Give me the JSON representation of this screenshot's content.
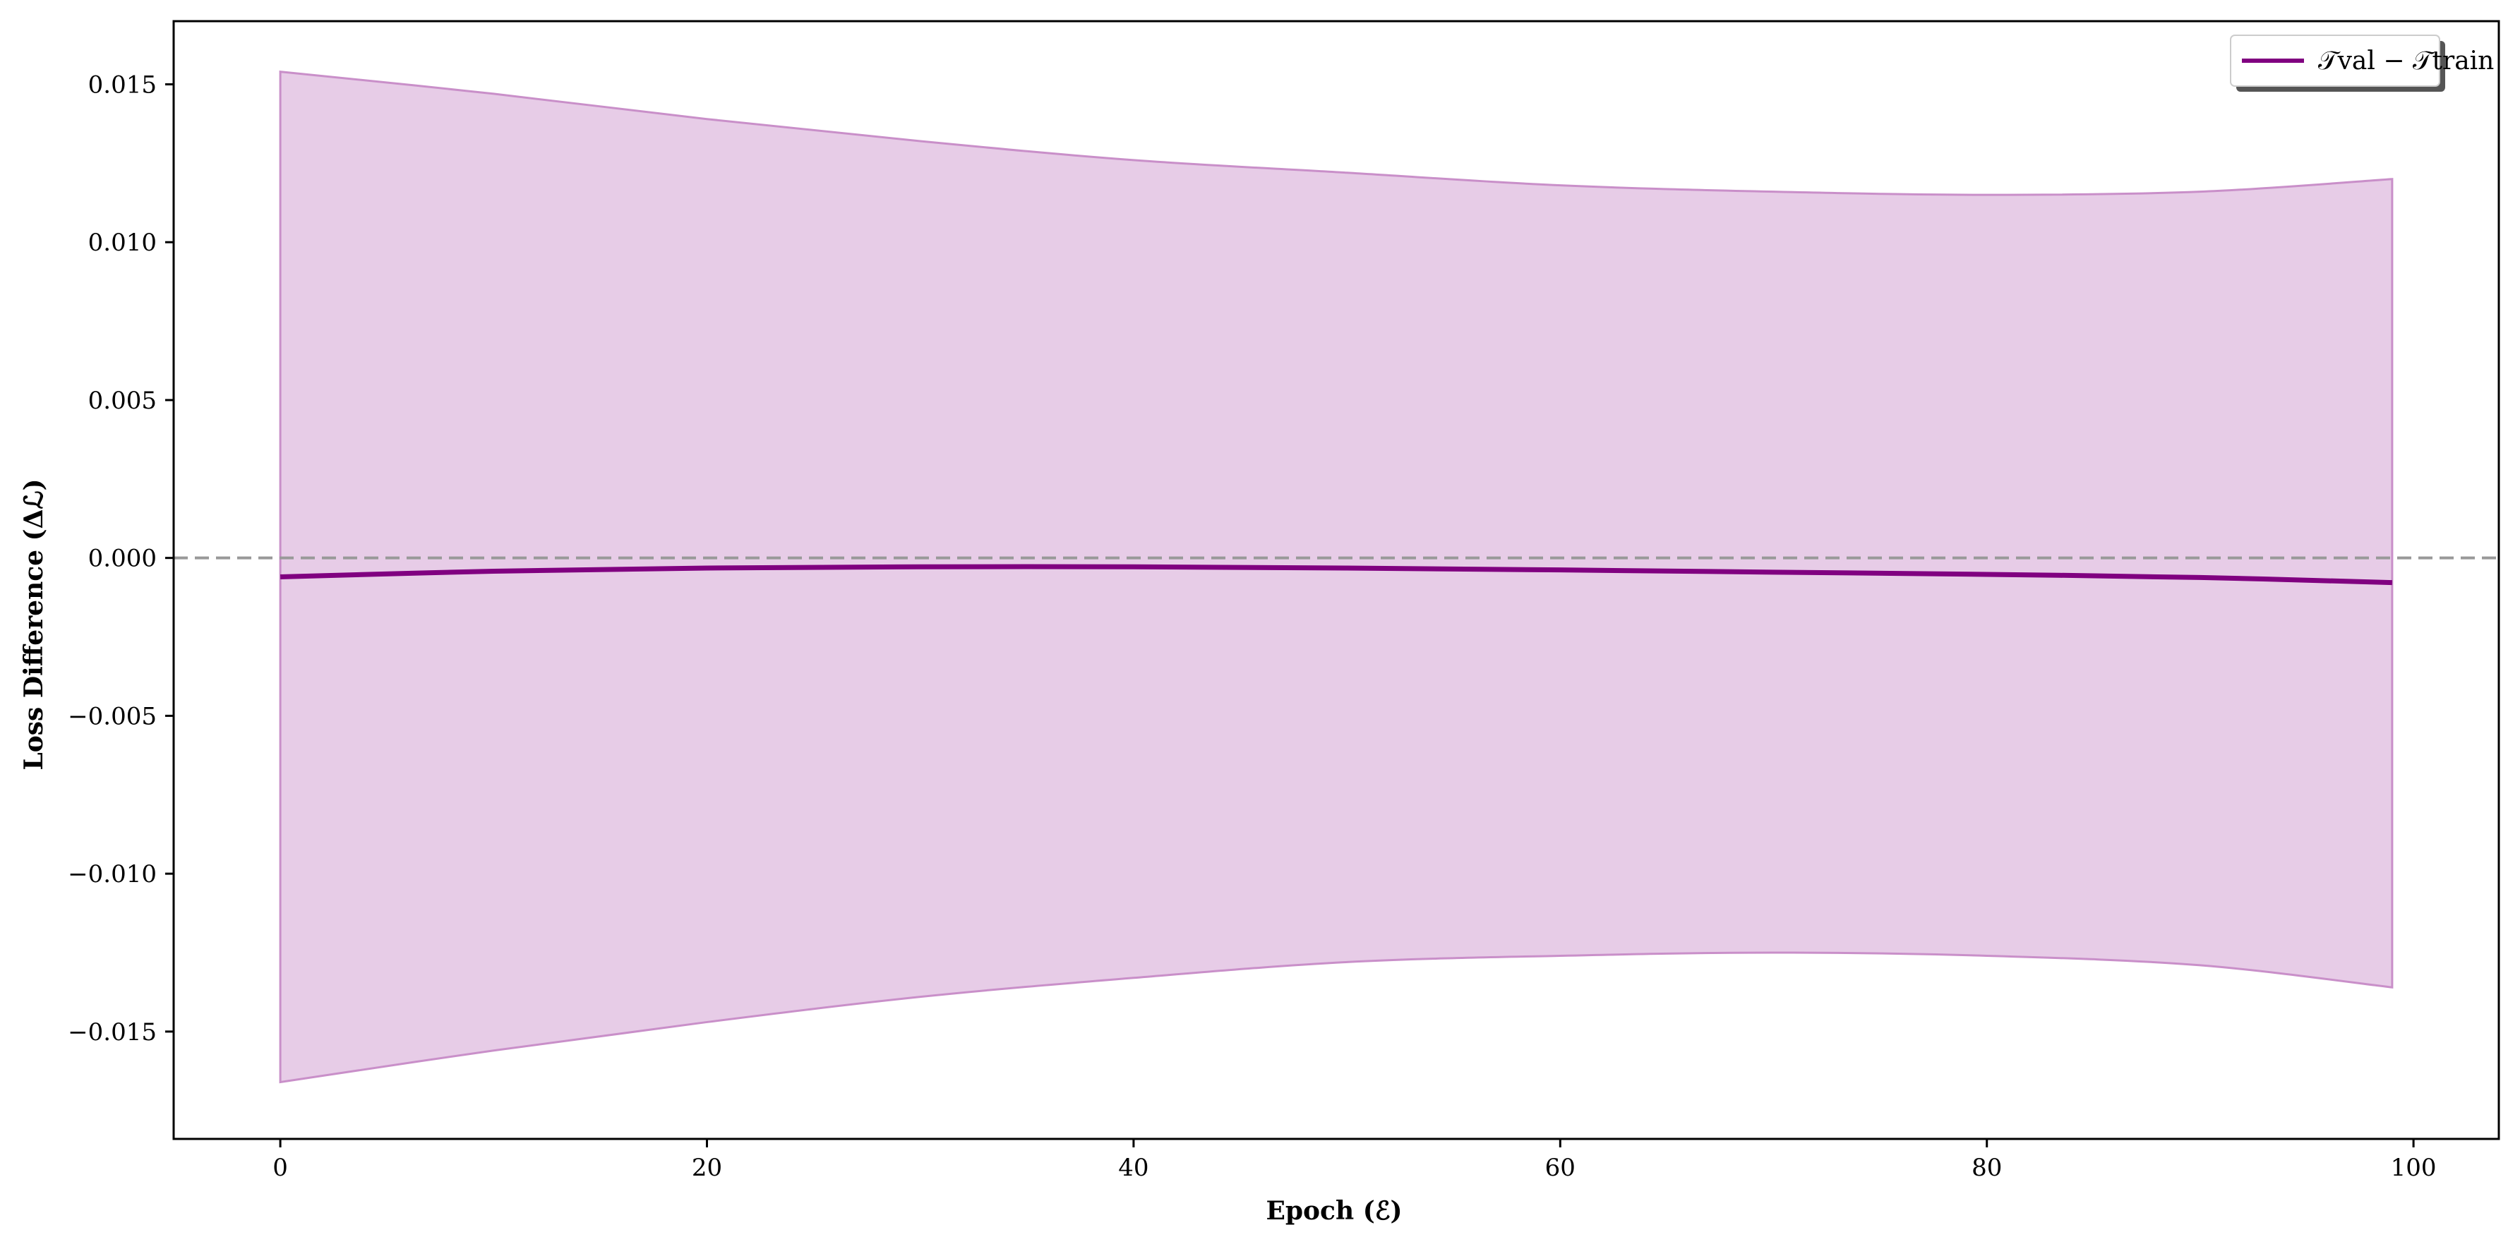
{
  "chart_data": {
    "type": "line",
    "title": "",
    "xlabel": "Epoch (ℰ)",
    "ylabel": "Loss Difference (Δℒ)",
    "xlim": [
      -5,
      104
    ],
    "ylim": [
      -0.0184,
      0.017
    ],
    "xticks": [
      0,
      20,
      40,
      60,
      80,
      100
    ],
    "xtick_labels": [
      "0",
      "20",
      "40",
      "60",
      "80",
      "100"
    ],
    "yticks": [
      -0.015,
      -0.01,
      -0.005,
      0,
      0.005,
      0.01,
      0.015
    ],
    "ytick_labels": [
      "−0.015",
      "−0.010",
      "−0.005",
      "0.000",
      "0.005",
      "0.010",
      "0.015"
    ],
    "grid": false,
    "legend_position": "top-right",
    "reference_line": {
      "y": 0,
      "style": "dashed",
      "color": "#999999"
    },
    "series": [
      {
        "name": "𝒯val − 𝒯train",
        "color": "#800080",
        "band_color": "#c98fc9",
        "x": [
          0,
          10,
          20,
          30,
          40,
          50,
          60,
          70,
          80,
          90,
          99
        ],
        "mean": [
          -0.0006,
          -0.00042,
          -0.00032,
          -0.00028,
          -0.00028,
          -0.00032,
          -0.00038,
          -0.00045,
          -0.00052,
          -0.00062,
          -0.00078
        ],
        "upper": [
          0.0154,
          0.0147,
          0.0139,
          0.0132,
          0.0126,
          0.0122,
          0.0118,
          0.0116,
          0.0115,
          0.0116,
          0.012
        ],
        "lower": [
          -0.0166,
          -0.0156,
          -0.0147,
          -0.0139,
          -0.0133,
          -0.0128,
          -0.0126,
          -0.0125,
          -0.0126,
          -0.0129,
          -0.0136
        ]
      }
    ]
  }
}
